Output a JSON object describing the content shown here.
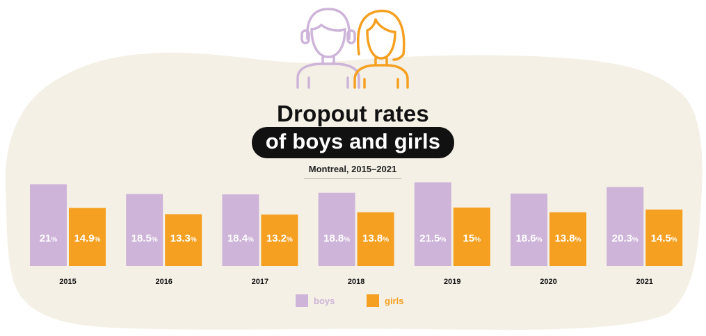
{
  "header": {
    "title_line1": "Dropout rates",
    "title_line2": "of boys and girls",
    "subtitle": "Montreal, 2015–2021"
  },
  "icons": [
    "boy-icon",
    "girl-icon"
  ],
  "colors": {
    "boys": "#cdb4d8",
    "girls": "#f5a020",
    "background_blob": "#f4f0e6",
    "title": "#111111"
  },
  "chart_data": {
    "type": "bar",
    "categories": [
      "2015",
      "2016",
      "2017",
      "2018",
      "2019",
      "2020",
      "2021"
    ],
    "series": [
      {
        "name": "boys",
        "values": [
          21,
          18.5,
          18.4,
          18.8,
          21.5,
          18.6,
          20.3
        ],
        "labels": [
          "21",
          "18.5",
          "18.4",
          "18.8",
          "21.5",
          "18.6",
          "20.3"
        ]
      },
      {
        "name": "girls",
        "values": [
          14.9,
          13.3,
          13.2,
          13.8,
          15,
          13.8,
          14.5
        ],
        "labels": [
          "14.9",
          "13.3",
          "13.2",
          "13.8",
          "15",
          "13.8",
          "14.5"
        ]
      }
    ],
    "unit": "%",
    "title": "Dropout rates of boys and girls",
    "subtitle": "Montreal, 2015–2021",
    "xlabel": "",
    "ylabel": "",
    "grid": false,
    "legend_position": "bottom-center"
  },
  "legend": {
    "boys_label": "boys",
    "girls_label": "girls"
  }
}
